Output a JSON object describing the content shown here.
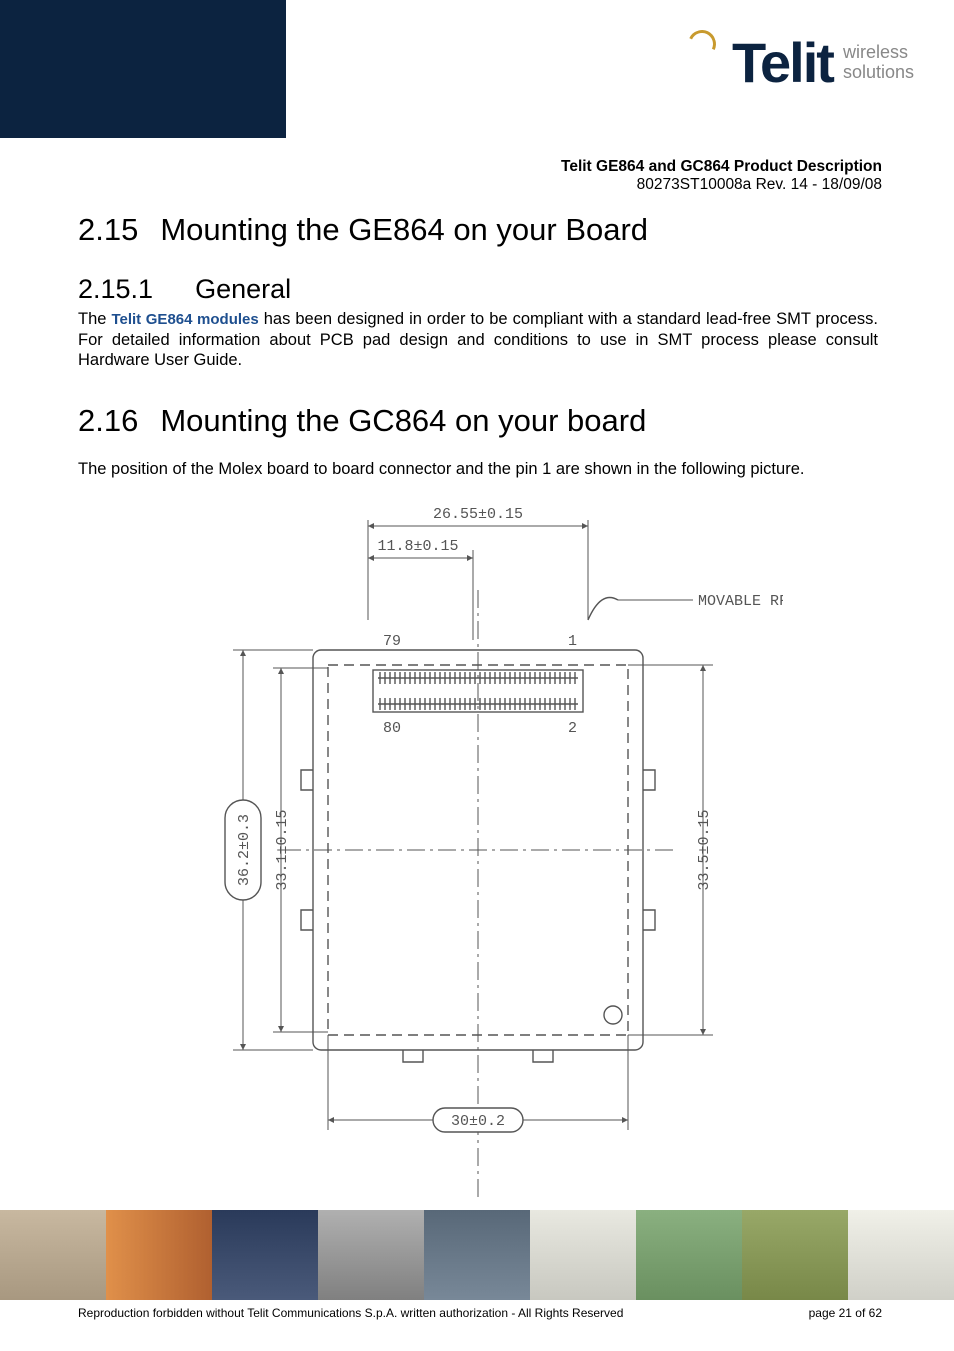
{
  "header": {
    "brand": "Telit",
    "tagline_line1": "wireless",
    "tagline_line2": "solutions",
    "doc_title": "Telit GE864 and GC864 Product Description",
    "doc_rev": "80273ST10008a Rev. 14 - 18/09/08"
  },
  "sections": {
    "s215": {
      "num": "2.15",
      "title": "Mounting the GE864 on your Board"
    },
    "s2151": {
      "num": "2.15.1",
      "title": "General"
    },
    "s215_para_pre": "The ",
    "s215_brand": "Telit GE864 modules",
    "s215_para_post": " has been designed in order to be compliant with a standard lead-free SMT process. For detailed information about PCB pad design and conditions to use in SMT process please consult Hardware User Guide.",
    "s216": {
      "num": "2.16",
      "title": "Mounting the GC864 on your board"
    },
    "s216_para": "The position of the Molex board to board connector and the pin 1 are shown in the following picture."
  },
  "diagram": {
    "dim_top1": "26.55±0.15",
    "dim_top2": "11.8±0.15",
    "label_rf": "MOVABLE RF",
    "pin79": "79",
    "pin80": "80",
    "pin1": "1",
    "pin2": "2",
    "dim_left_outer": "36.2±0.3",
    "dim_left_inner": "33.1±0.15",
    "dim_right": "33.5±0.15",
    "dim_bottom": "30±0.2",
    "stroke": "#555555",
    "text_color": "#555555"
  },
  "footer": {
    "copyright": "Reproduction forbidden without Telit Communications S.p.A. written authorization - All Rights Reserved",
    "page": "page 21 of 62",
    "thumb_colors": [
      "#b8a890",
      "#d28a4a",
      "#3a4a6a",
      "#9a9a9a",
      "#586878",
      "#d8d8d0",
      "#6a9a6a",
      "#889858",
      "#e8e8e0"
    ]
  }
}
